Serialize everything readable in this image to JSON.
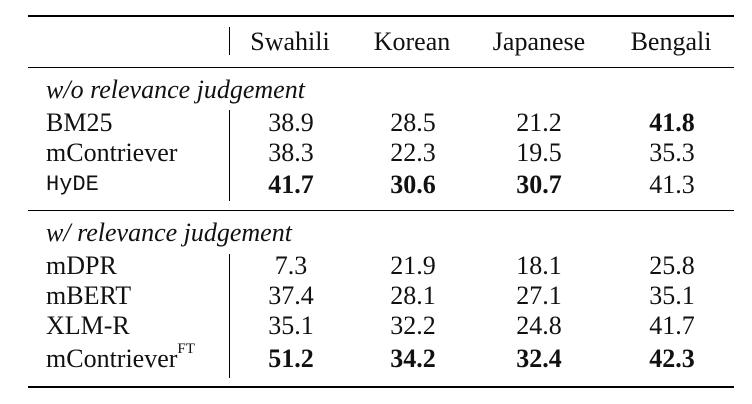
{
  "header": {
    "columns": [
      "Swahili",
      "Korean",
      "Japanese",
      "Bengali"
    ]
  },
  "sections": [
    {
      "title": "w/o relevance judgement",
      "rows": [
        {
          "name": "BM25",
          "values": [
            "38.9",
            "28.5",
            "21.2",
            "41.8"
          ],
          "bold": [
            false,
            false,
            false,
            true
          ]
        },
        {
          "name": "mContriever",
          "values": [
            "38.3",
            "22.3",
            "19.5",
            "35.3"
          ],
          "bold": [
            false,
            false,
            false,
            false
          ]
        },
        {
          "name": "HyDE",
          "values": [
            "41.7",
            "30.6",
            "30.7",
            "41.3"
          ],
          "bold": [
            true,
            true,
            true,
            false
          ]
        }
      ]
    },
    {
      "title": "w/ relevance judgement",
      "rows": [
        {
          "name": "mDPR",
          "values": [
            "7.3",
            "21.9",
            "18.1",
            "25.8"
          ],
          "bold": [
            false,
            false,
            false,
            false
          ]
        },
        {
          "name": "mBERT",
          "values": [
            "37.4",
            "28.1",
            "27.1",
            "35.1"
          ],
          "bold": [
            false,
            false,
            false,
            false
          ]
        },
        {
          "name": "XLM-R",
          "values": [
            "35.1",
            "32.2",
            "24.8",
            "41.7"
          ],
          "bold": [
            false,
            false,
            false,
            false
          ]
        },
        {
          "name": "mContriever",
          "superscript": "FT",
          "values": [
            "51.2",
            "34.2",
            "32.4",
            "42.3"
          ],
          "bold": [
            true,
            true,
            true,
            true
          ]
        }
      ]
    }
  ]
}
